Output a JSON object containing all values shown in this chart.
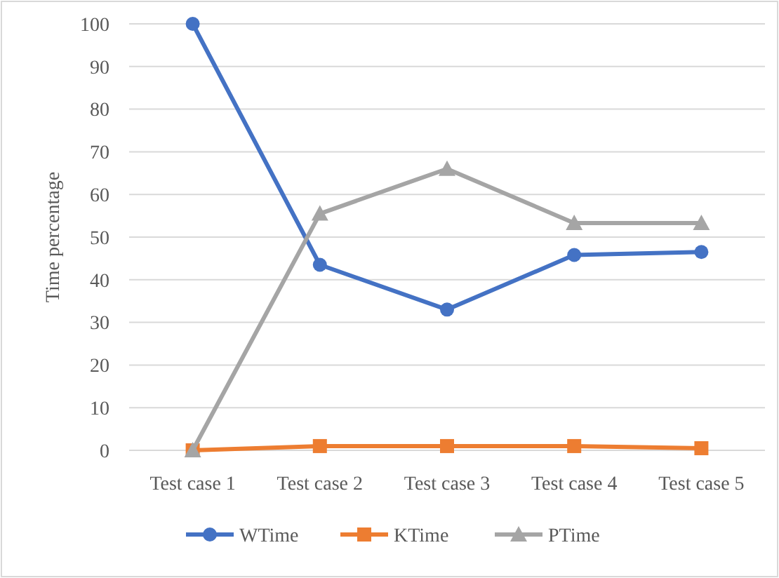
{
  "chart_data": {
    "type": "line",
    "ylabel": "Time percentage",
    "categories": [
      "Test case 1",
      "Test case 2",
      "Test case 3",
      "Test case 4",
      "Test case 5"
    ],
    "series": [
      {
        "name": "WTime",
        "color": "#4472c4",
        "marker": "circle",
        "values": [
          100,
          43.5,
          33,
          45.8,
          46.5
        ]
      },
      {
        "name": "KTime",
        "color": "#ed7d31",
        "marker": "square",
        "values": [
          0,
          1,
          1,
          1,
          0.5
        ]
      },
      {
        "name": "PTime",
        "color": "#a5a5a5",
        "marker": "triangle",
        "values": [
          0,
          55.5,
          66,
          53.3,
          53.3
        ]
      }
    ],
    "ylim": [
      0,
      100
    ],
    "yticks": [
      0,
      10,
      20,
      30,
      40,
      50,
      60,
      70,
      80,
      90,
      100
    ],
    "grid": "y",
    "legend": "bottom"
  }
}
